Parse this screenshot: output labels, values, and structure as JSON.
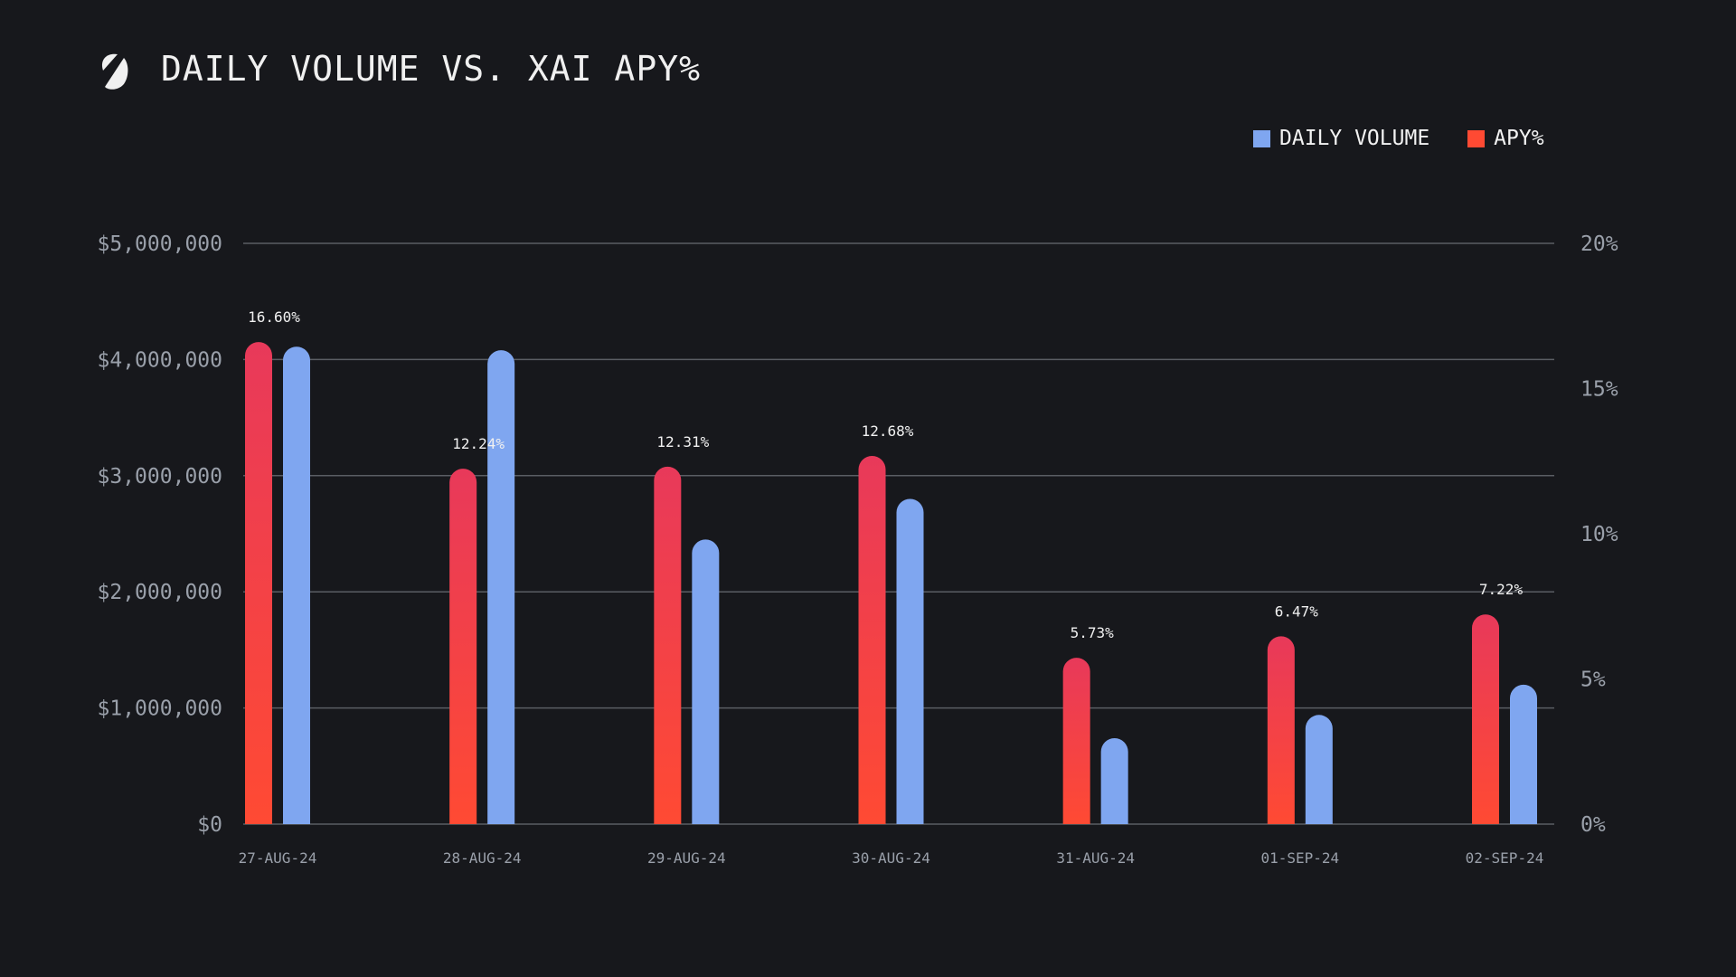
{
  "header": {
    "title": "DAILY VOLUME VS. XAI APY%",
    "logo_icon": "s-slash-logo"
  },
  "colors": {
    "background": "#17181c",
    "volume": "#7fa6f0",
    "apy_top": "#e8395a",
    "apy_bottom": "#ff4a33",
    "grid": "#5a5d63"
  },
  "chart_data": {
    "type": "bar",
    "title": "DAILY VOLUME VS. XAI APY%",
    "categories": [
      "27-AUG-24",
      "28-AUG-24",
      "29-AUG-24",
      "30-AUG-24",
      "31-AUG-24",
      "01-SEP-24",
      "02-SEP-24"
    ],
    "series": [
      {
        "name": "DAILY VOLUME",
        "axis": "left",
        "values": [
          4110000,
          4080000,
          2450000,
          2800000,
          740000,
          940000,
          1200000
        ]
      },
      {
        "name": "APY%",
        "axis": "right",
        "values": [
          16.6,
          12.24,
          12.31,
          12.68,
          5.73,
          6.47,
          7.22
        ]
      }
    ],
    "data_labels": [
      "16.60%",
      "12.24%",
      "12.31%",
      "12.68%",
      "5.73%",
      "6.47%",
      "7.22%"
    ],
    "left_axis": {
      "ylim": [
        0,
        5000000
      ],
      "ticks": [
        "$0",
        "$1,000,000",
        "$2,000,000",
        "$3,000,000",
        "$4,000,000",
        "$5,000,000"
      ]
    },
    "right_axis": {
      "ylim": [
        0,
        20
      ],
      "ticks": [
        "0%",
        "5%",
        "10%",
        "15%",
        "20%"
      ]
    },
    "legend": {
      "placement": "top-right",
      "entries": [
        "DAILY VOLUME",
        "APY%"
      ]
    },
    "grid": true
  }
}
